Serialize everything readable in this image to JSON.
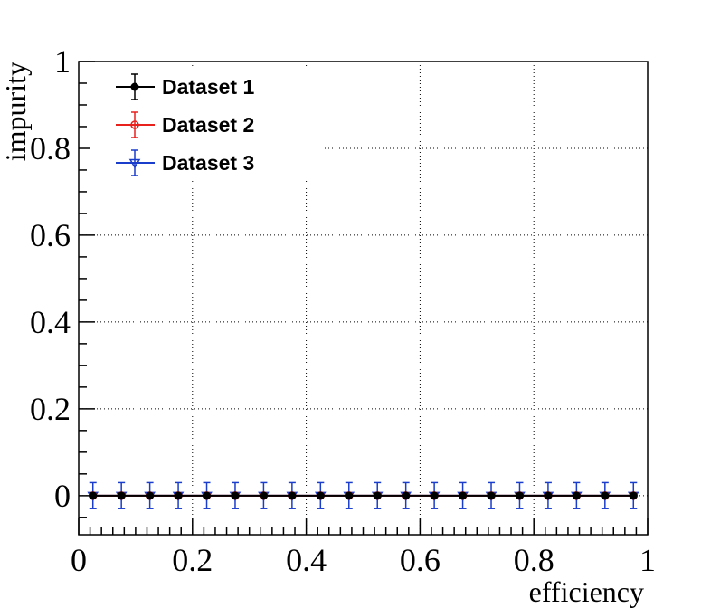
{
  "chart_data": {
    "type": "scatter",
    "title": "",
    "xlabel": "efficiency",
    "ylabel": "impurity",
    "xlim": [
      0,
      1
    ],
    "ylim": [
      -0.09,
      1.0
    ],
    "grid": true,
    "x_ticks": [
      0,
      0.2,
      0.4,
      0.6,
      0.8,
      1
    ],
    "x_tick_labels": [
      "0",
      "0.2",
      "0.4",
      "0.6",
      "0.8",
      "1"
    ],
    "y_ticks": [
      0,
      0.2,
      0.4,
      0.6,
      0.8,
      1
    ],
    "y_tick_labels": [
      "0",
      "0.2",
      "0.4",
      "0.6",
      "0.8",
      "1"
    ],
    "legend_position": "top-left",
    "x": [
      0.025,
      0.075,
      0.125,
      0.175,
      0.225,
      0.275,
      0.325,
      0.375,
      0.425,
      0.475,
      0.525,
      0.575,
      0.625,
      0.675,
      0.725,
      0.775,
      0.825,
      0.875,
      0.925,
      0.975
    ],
    "series": [
      {
        "name": "Dataset 1",
        "color": "#000000",
        "marker": "filled-circle",
        "values": [
          0,
          0,
          0,
          0,
          0,
          0,
          0,
          0,
          0,
          0,
          0,
          0,
          0,
          0,
          0,
          0,
          0,
          0,
          0,
          0
        ],
        "y_error": [
          0,
          0,
          0,
          0,
          0,
          0,
          0,
          0,
          0,
          0,
          0,
          0,
          0,
          0,
          0,
          0,
          0,
          0,
          0,
          0
        ]
      },
      {
        "name": "Dataset 2",
        "color": "#e8211d",
        "marker": "open-circle",
        "values": [
          0,
          0,
          0,
          0,
          0,
          0,
          0,
          0,
          0,
          0,
          0,
          0,
          0,
          0,
          0,
          0,
          0,
          0,
          0,
          0
        ],
        "y_error": [
          0,
          0,
          0,
          0,
          0,
          0,
          0,
          0,
          0,
          0,
          0,
          0,
          0,
          0,
          0,
          0,
          0,
          0,
          0,
          0
        ]
      },
      {
        "name": "Dataset 3",
        "color": "#1a3dcc",
        "marker": "open-triangle-down",
        "values": [
          0,
          0,
          0,
          0,
          0,
          0,
          0,
          0,
          0,
          0,
          0,
          0,
          0,
          0,
          0,
          0,
          0,
          0,
          0,
          0
        ],
        "y_error": [
          0.03,
          0.03,
          0.03,
          0.03,
          0.03,
          0.03,
          0.03,
          0.03,
          0.03,
          0.03,
          0.03,
          0.03,
          0.03,
          0.03,
          0.03,
          0.03,
          0.03,
          0.03,
          0.03,
          0.03
        ]
      }
    ]
  }
}
